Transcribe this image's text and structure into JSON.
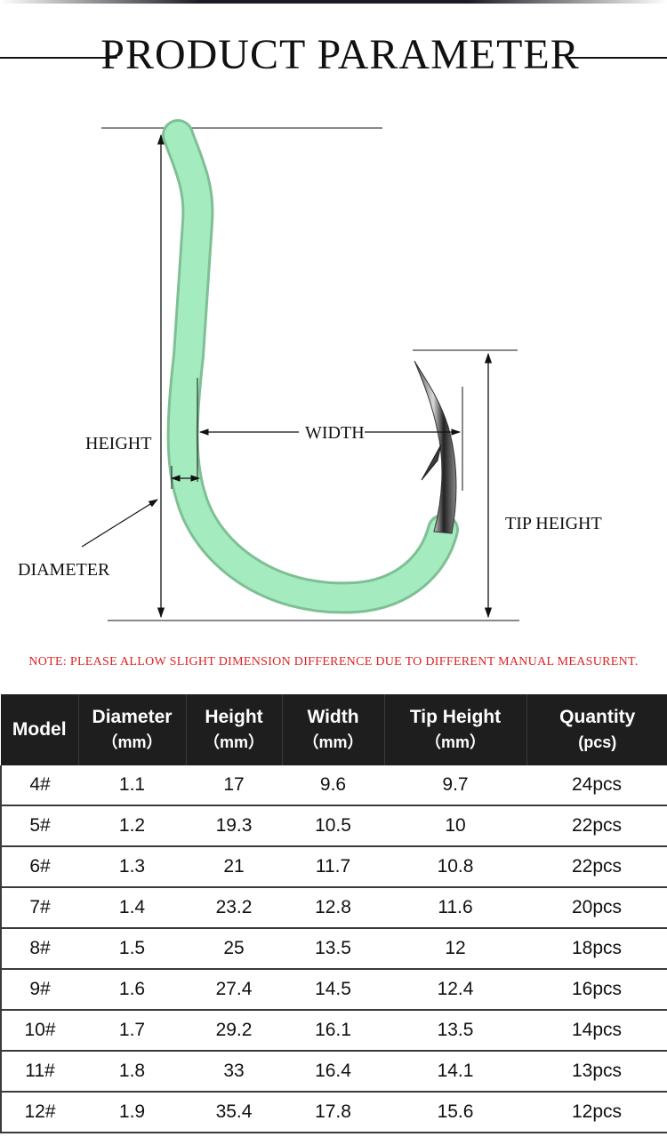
{
  "header": {
    "title": "PRODUCT PARAMETER"
  },
  "diagram": {
    "labels": {
      "height": "HEIGHT",
      "width": "WIDTH",
      "tip_height": "TIP HEIGHT",
      "diameter": "DIAMETER"
    },
    "hook_color": "#9ce6b8"
  },
  "note": "NOTE: PLEASE ALLOW SLIGHT DIMENSION DIFFERENCE DUE TO DIFFERENT MANUAL MEASURENT.",
  "table": {
    "columns": [
      {
        "label": "Model",
        "unit": ""
      },
      {
        "label": "Diameter",
        "unit": "（mm）"
      },
      {
        "label": "Height",
        "unit": "（mm）"
      },
      {
        "label": "Width",
        "unit": "（mm）"
      },
      {
        "label": "Tip Height",
        "unit": "（mm）"
      },
      {
        "label": "Quantity",
        "unit": "(pcs)"
      }
    ],
    "rows": [
      [
        "4#",
        "1.1",
        "17",
        "9.6",
        "9.7",
        "24pcs"
      ],
      [
        "5#",
        "1.2",
        "19.3",
        "10.5",
        "10",
        "22pcs"
      ],
      [
        "6#",
        "1.3",
        "21",
        "11.7",
        "10.8",
        "22pcs"
      ],
      [
        "7#",
        "1.4",
        "23.2",
        "12.8",
        "11.6",
        "20pcs"
      ],
      [
        "8#",
        "1.5",
        "25",
        "13.5",
        "12",
        "18pcs"
      ],
      [
        "9#",
        "1.6",
        "27.4",
        "14.5",
        "12.4",
        "16pcs"
      ],
      [
        "10#",
        "1.7",
        "29.2",
        "16.1",
        "13.5",
        "14pcs"
      ],
      [
        "11#",
        "1.8",
        "33",
        "16.4",
        "14.1",
        "13pcs"
      ],
      [
        "12#",
        "1.9",
        "35.4",
        "17.8",
        "15.6",
        "12pcs"
      ]
    ]
  },
  "colors": {
    "note": "#e02020",
    "table_header_bg": "#1e1e1e"
  }
}
